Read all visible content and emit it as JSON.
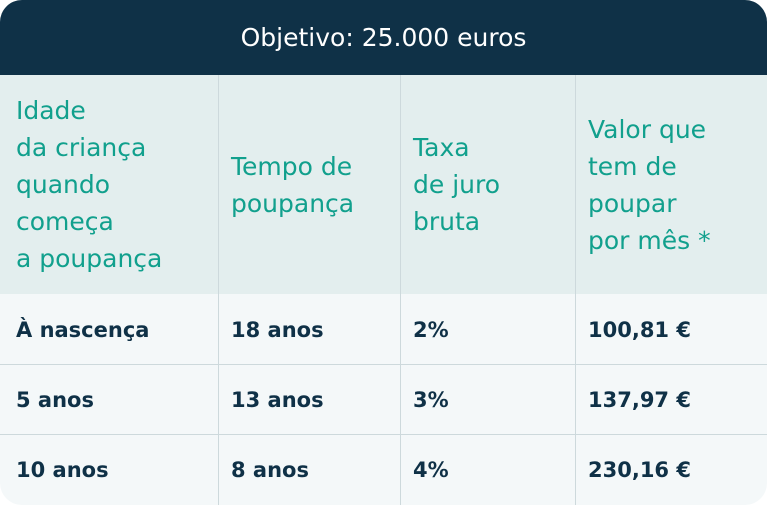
{
  "title": "Objetivo: 25.000 euros",
  "headers": [
    "Idade\nda criança\nquando\ncomeça\na poupança",
    "Tempo de\npoupança",
    "Taxa\nde juro\nbruta",
    "Valor que\ntem de\npoupar\npor mês *"
  ],
  "rows": [
    [
      "À nascença",
      "18 anos",
      "2%",
      "100,81 €"
    ],
    [
      "5 anos",
      "13 anos",
      "3%",
      "137,97 €"
    ],
    [
      "10 anos",
      "8 anos",
      "4%",
      "230,16 €"
    ]
  ],
  "colors": {
    "title_bg": "#0f3147",
    "header_bg": "#e3eeee",
    "header_text": "#11a08d",
    "body_text": "#0f3147",
    "row_bg": "#f4f8f9"
  }
}
